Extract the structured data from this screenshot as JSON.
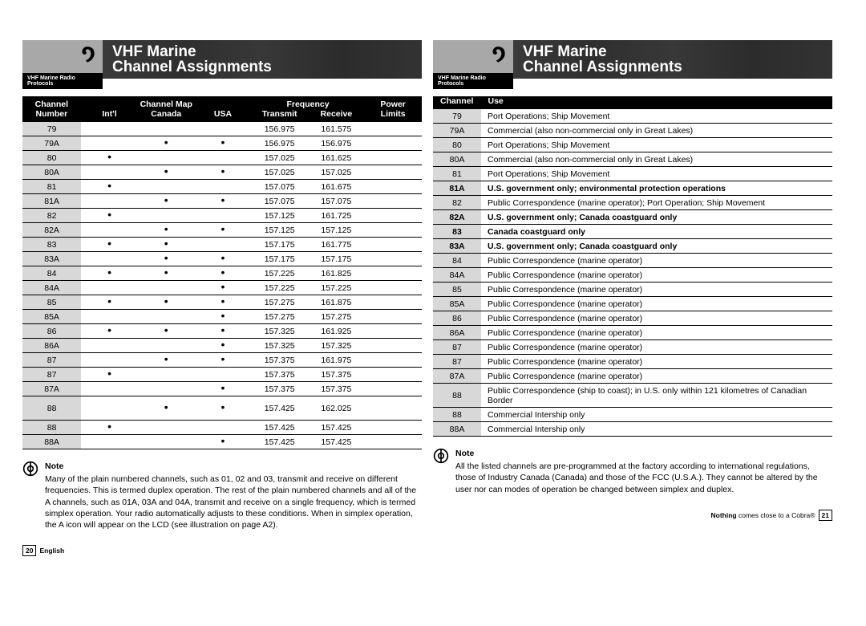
{
  "header": {
    "title_line1": "VHF Marine",
    "title_line2": "Channel Assignments",
    "subtitle": "VHF Marine Radio Protocols"
  },
  "left_table": {
    "header_groups": [
      "Channel",
      "Channel Map",
      "Frequency",
      "Power"
    ],
    "header_cols": [
      "Number",
      "Int'l",
      "Canada",
      "USA",
      "Transmit",
      "Receive",
      "Limits"
    ],
    "rows": [
      {
        "ch": "79",
        "intl": "",
        "ca": "",
        "us": "",
        "tx": "156.975",
        "rx": "161.575",
        "pw": ""
      },
      {
        "ch": "79A",
        "intl": "",
        "ca": "•",
        "us": "•",
        "tx": "156.975",
        "rx": "156.975",
        "pw": ""
      },
      {
        "ch": "80",
        "intl": "•",
        "ca": "",
        "us": "",
        "tx": "157.025",
        "rx": "161.625",
        "pw": ""
      },
      {
        "ch": "80A",
        "intl": "",
        "ca": "•",
        "us": "•",
        "tx": "157.025",
        "rx": "157.025",
        "pw": ""
      },
      {
        "ch": "81",
        "intl": "•",
        "ca": "",
        "us": "",
        "tx": "157.075",
        "rx": "161.675",
        "pw": ""
      },
      {
        "ch": "81A",
        "intl": "",
        "ca": "•",
        "us": "•",
        "tx": "157.075",
        "rx": "157.075",
        "pw": ""
      },
      {
        "ch": "82",
        "intl": "•",
        "ca": "",
        "us": "",
        "tx": "157.125",
        "rx": "161.725",
        "pw": ""
      },
      {
        "ch": "82A",
        "intl": "",
        "ca": "•",
        "us": "•",
        "tx": "157.125",
        "rx": "157.125",
        "pw": ""
      },
      {
        "ch": "83",
        "intl": "•",
        "ca": "•",
        "us": "",
        "tx": "157.175",
        "rx": "161.775",
        "pw": ""
      },
      {
        "ch": "83A",
        "intl": "",
        "ca": "•",
        "us": "•",
        "tx": "157.175",
        "rx": "157.175",
        "pw": ""
      },
      {
        "ch": "84",
        "intl": "•",
        "ca": "•",
        "us": "•",
        "tx": "157.225",
        "rx": "161.825",
        "pw": ""
      },
      {
        "ch": "84A",
        "intl": "",
        "ca": "",
        "us": "•",
        "tx": "157.225",
        "rx": "157.225",
        "pw": ""
      },
      {
        "ch": "85",
        "intl": "•",
        "ca": "•",
        "us": "•",
        "tx": "157.275",
        "rx": "161.875",
        "pw": ""
      },
      {
        "ch": "85A",
        "intl": "",
        "ca": "",
        "us": "•",
        "tx": "157.275",
        "rx": "157.275",
        "pw": ""
      },
      {
        "ch": "86",
        "intl": "•",
        "ca": "•",
        "us": "•",
        "tx": "157.325",
        "rx": "161.925",
        "pw": ""
      },
      {
        "ch": "86A",
        "intl": "",
        "ca": "",
        "us": "•",
        "tx": "157.325",
        "rx": "157.325",
        "pw": ""
      },
      {
        "ch": "87",
        "intl": "",
        "ca": "•",
        "us": "•",
        "tx": "157.375",
        "rx": "161.975",
        "pw": ""
      },
      {
        "ch": "87",
        "intl": "•",
        "ca": "",
        "us": "",
        "tx": "157.375",
        "rx": "157.375",
        "pw": ""
      },
      {
        "ch": "87A",
        "intl": "",
        "ca": "",
        "us": "•",
        "tx": "157.375",
        "rx": "157.375",
        "pw": ""
      },
      {
        "ch": "88",
        "intl": "",
        "ca": "•",
        "us": "•",
        "tx": "157.425",
        "rx": "162.025",
        "pw": "",
        "tall": true
      },
      {
        "ch": "88",
        "intl": "•",
        "ca": "",
        "us": "",
        "tx": "157.425",
        "rx": "157.425",
        "pw": ""
      },
      {
        "ch": "88A",
        "intl": "",
        "ca": "",
        "us": "•",
        "tx": "157.425",
        "rx": "157.425",
        "pw": ""
      }
    ]
  },
  "right_table": {
    "header_cols": [
      "Channel",
      "Use"
    ],
    "rows": [
      {
        "ch": "79",
        "use": "Port Operations; Ship Movement"
      },
      {
        "ch": "79A",
        "use": "Commercial (also non-commercial only in Great Lakes)"
      },
      {
        "ch": "80",
        "use": "Port Operations; Ship Movement"
      },
      {
        "ch": "80A",
        "use": "Commercial (also non-commercial only in Great Lakes)"
      },
      {
        "ch": "81",
        "use": "Port Operations; Ship Movement"
      },
      {
        "ch": "81A",
        "use": "U.S. government only; environmental protection operations",
        "bold": true
      },
      {
        "ch": "82",
        "use": "Public Correspondence (marine operator); Port Operation; Ship Movement"
      },
      {
        "ch": "82A",
        "use": "U.S. government only; Canada coastguard only",
        "bold": true
      },
      {
        "ch": "83",
        "use": "Canada coastguard only",
        "bold": true
      },
      {
        "ch": "83A",
        "use": "U.S. government only; Canada coastguard only",
        "bold": true
      },
      {
        "ch": "84",
        "use": "Public Correspondence (marine operator)"
      },
      {
        "ch": "84A",
        "use": "Public Correspondence (marine operator)"
      },
      {
        "ch": "85",
        "use": "Public Correspondence (marine operator)"
      },
      {
        "ch": "85A",
        "use": "Public Correspondence (marine operator)"
      },
      {
        "ch": "86",
        "use": "Public Correspondence (marine operator)"
      },
      {
        "ch": "86A",
        "use": "Public Correspondence (marine operator)"
      },
      {
        "ch": "87",
        "use": "Public Correspondence (marine operator)"
      },
      {
        "ch": "87",
        "use": "Public Correspondence (marine operator)"
      },
      {
        "ch": "87A",
        "use": "Public Correspondence (marine operator)"
      },
      {
        "ch": "88",
        "use": "Public Correspondence (ship to coast); in U.S. only within 121 kilometres of Canadian Border"
      },
      {
        "ch": "88",
        "use": "Commercial Intership only"
      },
      {
        "ch": "88A",
        "use": "Commercial Intership only"
      }
    ]
  },
  "notes": {
    "title": "Note",
    "left": "Many of the plain numbered channels, such as 01, 02 and 03, transmit and receive on different frequencies. This is termed duplex operation. The rest of the plain numbered channels and all of the A channels, such as 01A, 03A and 04A, transmit and receive on a single frequency, which is termed simplex operation. Your radio automatically adjusts to these conditions. When in simplex operation, the A icon will appear on the LCD (see illustration on page A2).",
    "right": "All the listed channels are pre-programmed at the factory according to international regulations, those of Industry Canada (Canada) and those of the FCC (U.S.A.). They cannot be altered by the user nor can modes of operation be changed between simplex and duplex."
  },
  "footers": {
    "left_page": "20",
    "left_text": "English",
    "right_text_strong": "Nothing",
    "right_text_rest": " comes close to a Cobra®",
    "right_page": "21"
  },
  "colors": {
    "band_bg": "#2a2a2a",
    "logo_bg": "#a8a8a8",
    "shade": "#d8d8d8"
  }
}
